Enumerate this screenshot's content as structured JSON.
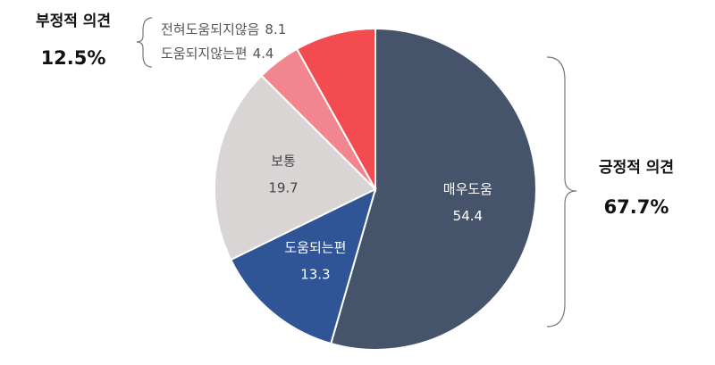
{
  "chart_data": {
    "type": "pie",
    "categories": [
      "매우도움",
      "도움되는편",
      "보통",
      "도움되지않는편",
      "전혀도움되지않음"
    ],
    "values": [
      54.4,
      13.3,
      19.7,
      4.4,
      8.1
    ],
    "colors": [
      "#46546b",
      "#2f5597",
      "#d9d5d5",
      "#f2868e",
      "#f24b50"
    ],
    "annotations": [
      {
        "text": "부정적 의견",
        "value_label": "12.5%"
      },
      {
        "text": "긍정적 의견",
        "value_label": "67.7%"
      }
    ]
  }
}
